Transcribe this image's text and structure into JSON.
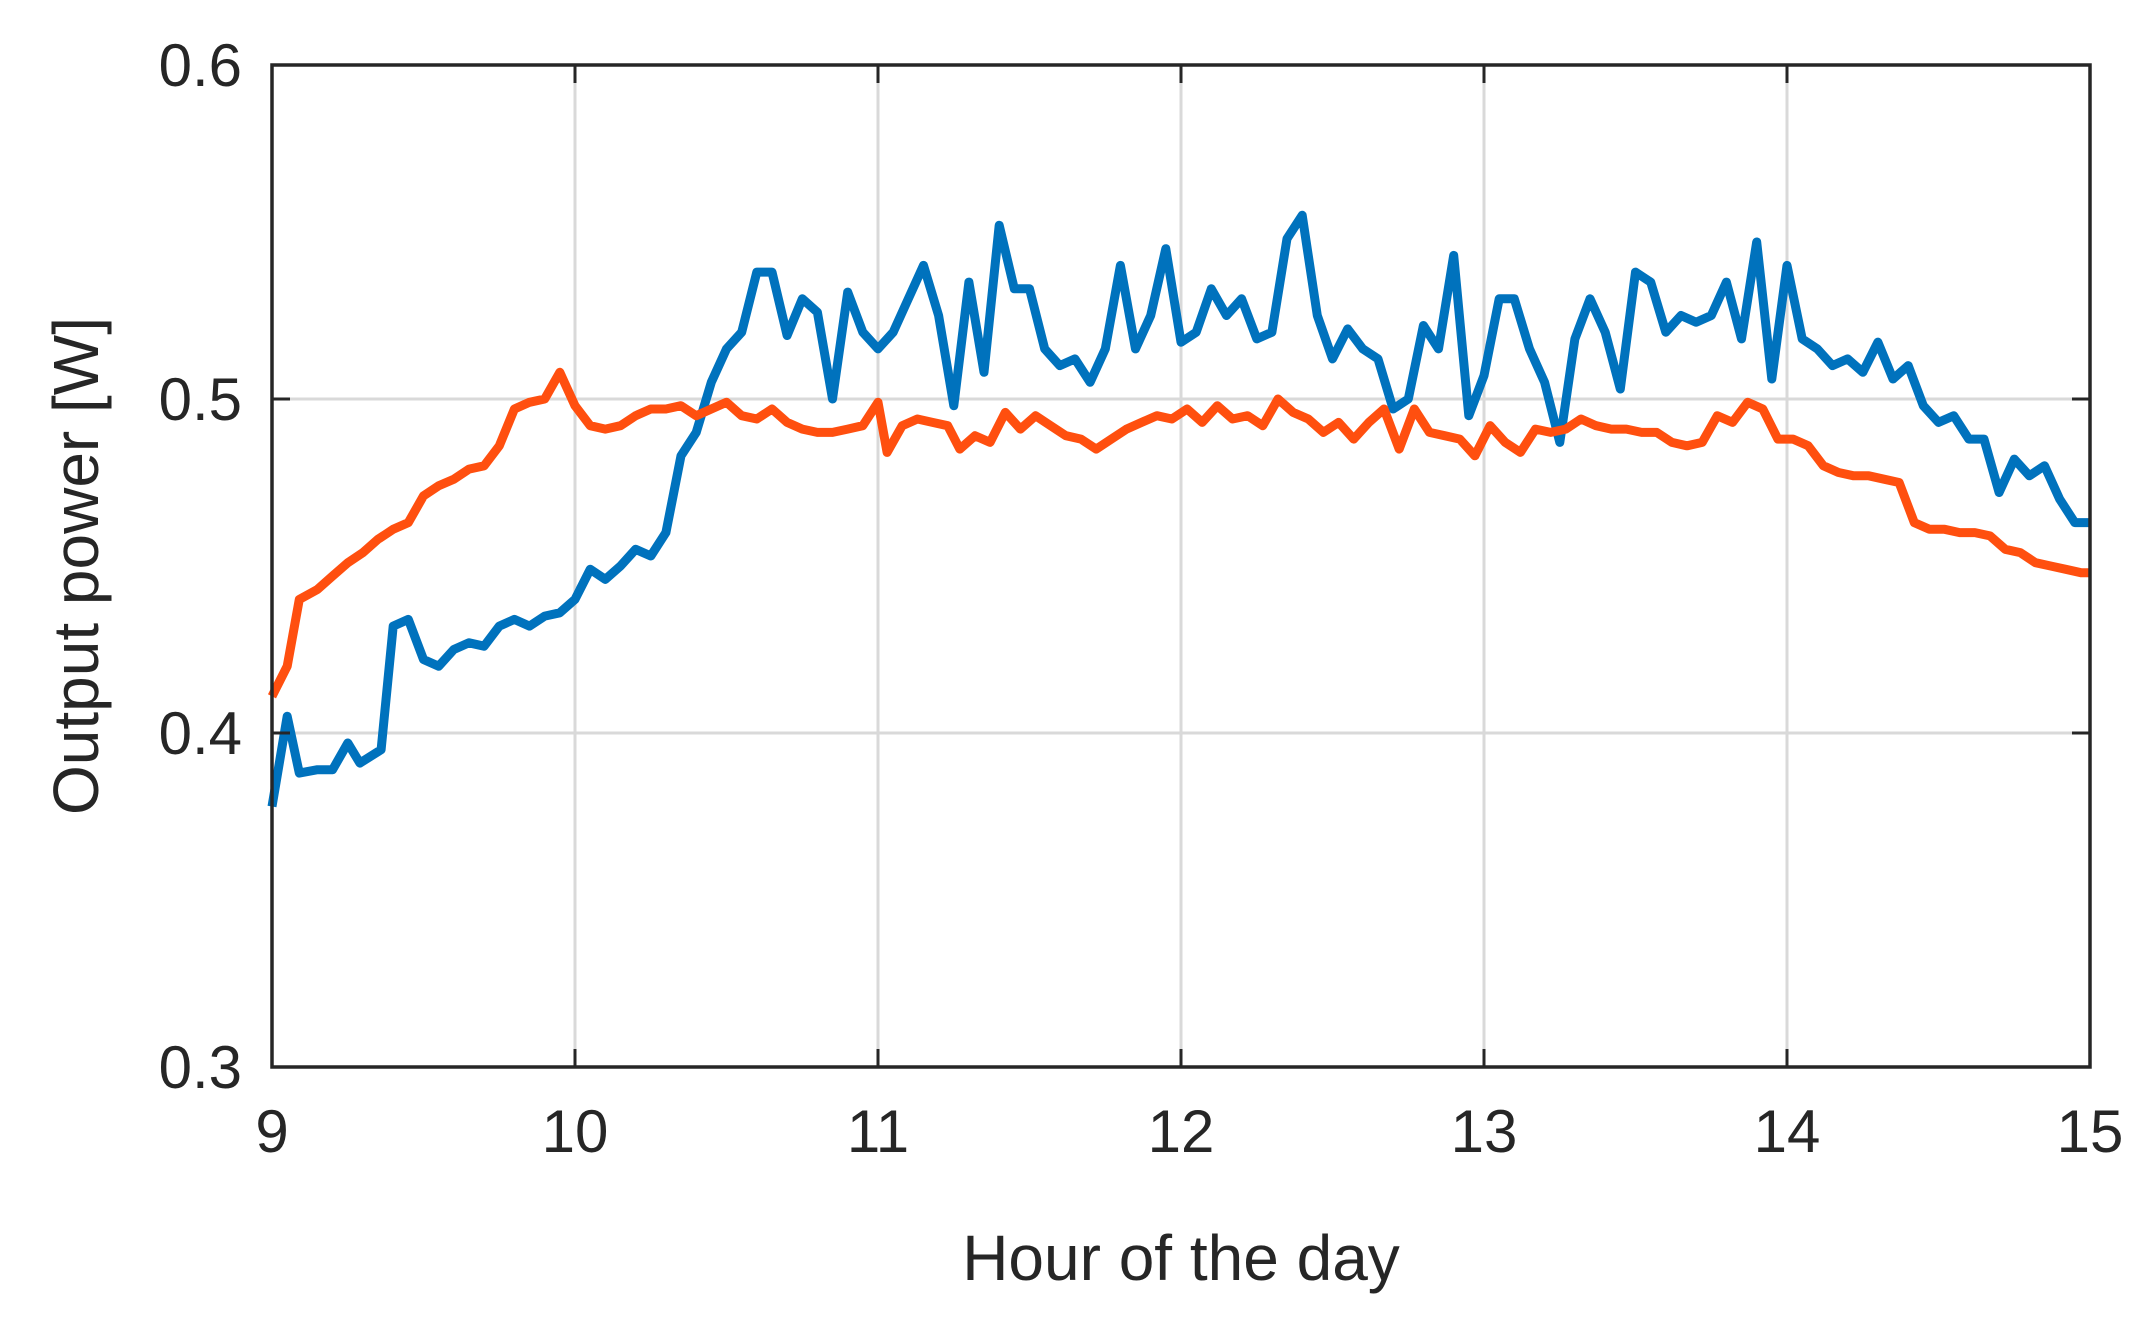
{
  "chart_data": {
    "type": "line",
    "title": "",
    "xlabel": "Hour of the day",
    "ylabel": "Output power [W]",
    "xlim": [
      9,
      15
    ],
    "ylim": [
      0.3,
      0.6
    ],
    "xticks": [
      "9",
      "10",
      "11",
      "12",
      "13",
      "14",
      "15"
    ],
    "yticks": [
      "0.3",
      "0.4",
      "0.5",
      "0.6"
    ],
    "grid": true,
    "legend": "none",
    "series": [
      {
        "color": "#0072BD",
        "points": [
          [
            9.0,
            0.378
          ],
          [
            9.05,
            0.405
          ],
          [
            9.09,
            0.388
          ],
          [
            9.15,
            0.389
          ],
          [
            9.2,
            0.389
          ],
          [
            9.25,
            0.397
          ],
          [
            9.29,
            0.391
          ],
          [
            9.36,
            0.395
          ],
          [
            9.4,
            0.432
          ],
          [
            9.45,
            0.434
          ],
          [
            9.5,
            0.422
          ],
          [
            9.55,
            0.42
          ],
          [
            9.6,
            0.425
          ],
          [
            9.65,
            0.427
          ],
          [
            9.7,
            0.426
          ],
          [
            9.75,
            0.432
          ],
          [
            9.8,
            0.434
          ],
          [
            9.85,
            0.432
          ],
          [
            9.9,
            0.435
          ],
          [
            9.95,
            0.436
          ],
          [
            10.0,
            0.44
          ],
          [
            10.05,
            0.449
          ],
          [
            10.1,
            0.446
          ],
          [
            10.15,
            0.45
          ],
          [
            10.2,
            0.455
          ],
          [
            10.25,
            0.453
          ],
          [
            10.3,
            0.46
          ],
          [
            10.35,
            0.483
          ],
          [
            10.4,
            0.49
          ],
          [
            10.45,
            0.505
          ],
          [
            10.5,
            0.515
          ],
          [
            10.55,
            0.52
          ],
          [
            10.6,
            0.538
          ],
          [
            10.65,
            0.538
          ],
          [
            10.7,
            0.519
          ],
          [
            10.75,
            0.53
          ],
          [
            10.8,
            0.526
          ],
          [
            10.85,
            0.5
          ],
          [
            10.9,
            0.532
          ],
          [
            10.95,
            0.52
          ],
          [
            11.0,
            0.515
          ],
          [
            11.05,
            0.52
          ],
          [
            11.1,
            0.53
          ],
          [
            11.15,
            0.54
          ],
          [
            11.2,
            0.525
          ],
          [
            11.25,
            0.498
          ],
          [
            11.3,
            0.535
          ],
          [
            11.35,
            0.508
          ],
          [
            11.4,
            0.552
          ],
          [
            11.45,
            0.533
          ],
          [
            11.5,
            0.533
          ],
          [
            11.55,
            0.515
          ],
          [
            11.6,
            0.51
          ],
          [
            11.65,
            0.512
          ],
          [
            11.7,
            0.505
          ],
          [
            11.75,
            0.515
          ],
          [
            11.8,
            0.54
          ],
          [
            11.85,
            0.515
          ],
          [
            11.9,
            0.525
          ],
          [
            11.95,
            0.545
          ],
          [
            12.0,
            0.517
          ],
          [
            12.05,
            0.52
          ],
          [
            12.1,
            0.533
          ],
          [
            12.15,
            0.525
          ],
          [
            12.2,
            0.53
          ],
          [
            12.25,
            0.518
          ],
          [
            12.3,
            0.52
          ],
          [
            12.35,
            0.548
          ],
          [
            12.4,
            0.555
          ],
          [
            12.45,
            0.525
          ],
          [
            12.5,
            0.512
          ],
          [
            12.55,
            0.521
          ],
          [
            12.6,
            0.515
          ],
          [
            12.65,
            0.512
          ],
          [
            12.7,
            0.497
          ],
          [
            12.75,
            0.5
          ],
          [
            12.8,
            0.522
          ],
          [
            12.85,
            0.515
          ],
          [
            12.9,
            0.543
          ],
          [
            12.95,
            0.495
          ],
          [
            13.0,
            0.507
          ],
          [
            13.05,
            0.53
          ],
          [
            13.1,
            0.53
          ],
          [
            13.15,
            0.515
          ],
          [
            13.2,
            0.505
          ],
          [
            13.25,
            0.487
          ],
          [
            13.3,
            0.518
          ],
          [
            13.35,
            0.53
          ],
          [
            13.4,
            0.52
          ],
          [
            13.45,
            0.503
          ],
          [
            13.5,
            0.538
          ],
          [
            13.55,
            0.535
          ],
          [
            13.6,
            0.52
          ],
          [
            13.65,
            0.525
          ],
          [
            13.7,
            0.523
          ],
          [
            13.75,
            0.525
          ],
          [
            13.8,
            0.535
          ],
          [
            13.85,
            0.518
          ],
          [
            13.9,
            0.547
          ],
          [
            13.95,
            0.506
          ],
          [
            14.0,
            0.54
          ],
          [
            14.05,
            0.518
          ],
          [
            14.1,
            0.515
          ],
          [
            14.15,
            0.51
          ],
          [
            14.2,
            0.512
          ],
          [
            14.25,
            0.508
          ],
          [
            14.3,
            0.517
          ],
          [
            14.35,
            0.506
          ],
          [
            14.4,
            0.51
          ],
          [
            14.45,
            0.498
          ],
          [
            14.5,
            0.493
          ],
          [
            14.55,
            0.495
          ],
          [
            14.6,
            0.488
          ],
          [
            14.65,
            0.488
          ],
          [
            14.7,
            0.472
          ],
          [
            14.75,
            0.482
          ],
          [
            14.8,
            0.477
          ],
          [
            14.85,
            0.48
          ],
          [
            14.9,
            0.47
          ],
          [
            14.95,
            0.463
          ],
          [
            15.0,
            0.463
          ]
        ]
      },
      {
        "color": "#FF4F0F",
        "points": [
          [
            9.0,
            0.411
          ],
          [
            9.05,
            0.42
          ],
          [
            9.09,
            0.44
          ],
          [
            9.15,
            0.443
          ],
          [
            9.2,
            0.447
          ],
          [
            9.25,
            0.451
          ],
          [
            9.3,
            0.454
          ],
          [
            9.35,
            0.458
          ],
          [
            9.4,
            0.461
          ],
          [
            9.45,
            0.463
          ],
          [
            9.5,
            0.471
          ],
          [
            9.55,
            0.474
          ],
          [
            9.6,
            0.476
          ],
          [
            9.65,
            0.479
          ],
          [
            9.7,
            0.48
          ],
          [
            9.75,
            0.486
          ],
          [
            9.8,
            0.497
          ],
          [
            9.85,
            0.499
          ],
          [
            9.9,
            0.5
          ],
          [
            9.95,
            0.508
          ],
          [
            10.0,
            0.498
          ],
          [
            10.05,
            0.492
          ],
          [
            10.1,
            0.491
          ],
          [
            10.15,
            0.492
          ],
          [
            10.2,
            0.495
          ],
          [
            10.25,
            0.497
          ],
          [
            10.3,
            0.497
          ],
          [
            10.35,
            0.498
          ],
          [
            10.4,
            0.495
          ],
          [
            10.45,
            0.497
          ],
          [
            10.5,
            0.499
          ],
          [
            10.55,
            0.495
          ],
          [
            10.6,
            0.494
          ],
          [
            10.65,
            0.497
          ],
          [
            10.7,
            0.493
          ],
          [
            10.75,
            0.491
          ],
          [
            10.8,
            0.49
          ],
          [
            10.85,
            0.49
          ],
          [
            10.9,
            0.491
          ],
          [
            10.95,
            0.492
          ],
          [
            11.0,
            0.499
          ],
          [
            11.03,
            0.484
          ],
          [
            11.08,
            0.492
          ],
          [
            11.13,
            0.494
          ],
          [
            11.18,
            0.493
          ],
          [
            11.23,
            0.492
          ],
          [
            11.27,
            0.485
          ],
          [
            11.32,
            0.489
          ],
          [
            11.37,
            0.487
          ],
          [
            11.42,
            0.496
          ],
          [
            11.47,
            0.491
          ],
          [
            11.52,
            0.495
          ],
          [
            11.57,
            0.492
          ],
          [
            11.62,
            0.489
          ],
          [
            11.67,
            0.488
          ],
          [
            11.72,
            0.485
          ],
          [
            11.77,
            0.488
          ],
          [
            11.82,
            0.491
          ],
          [
            11.87,
            0.493
          ],
          [
            11.92,
            0.495
          ],
          [
            11.97,
            0.494
          ],
          [
            12.02,
            0.497
          ],
          [
            12.07,
            0.493
          ],
          [
            12.12,
            0.498
          ],
          [
            12.17,
            0.494
          ],
          [
            12.22,
            0.495
          ],
          [
            12.27,
            0.492
          ],
          [
            12.32,
            0.5
          ],
          [
            12.37,
            0.496
          ],
          [
            12.42,
            0.494
          ],
          [
            12.47,
            0.49
          ],
          [
            12.52,
            0.493
          ],
          [
            12.57,
            0.488
          ],
          [
            12.62,
            0.493
          ],
          [
            12.67,
            0.497
          ],
          [
            12.72,
            0.485
          ],
          [
            12.77,
            0.497
          ],
          [
            12.82,
            0.49
          ],
          [
            12.87,
            0.489
          ],
          [
            12.92,
            0.488
          ],
          [
            12.97,
            0.483
          ],
          [
            13.02,
            0.492
          ],
          [
            13.07,
            0.487
          ],
          [
            13.12,
            0.484
          ],
          [
            13.17,
            0.491
          ],
          [
            13.22,
            0.49
          ],
          [
            13.27,
            0.491
          ],
          [
            13.32,
            0.494
          ],
          [
            13.37,
            0.492
          ],
          [
            13.42,
            0.491
          ],
          [
            13.47,
            0.491
          ],
          [
            13.52,
            0.49
          ],
          [
            13.57,
            0.49
          ],
          [
            13.62,
            0.487
          ],
          [
            13.67,
            0.486
          ],
          [
            13.72,
            0.487
          ],
          [
            13.77,
            0.495
          ],
          [
            13.82,
            0.493
          ],
          [
            13.87,
            0.499
          ],
          [
            13.92,
            0.497
          ],
          [
            13.97,
            0.488
          ],
          [
            14.02,
            0.488
          ],
          [
            14.07,
            0.486
          ],
          [
            14.12,
            0.48
          ],
          [
            14.17,
            0.478
          ],
          [
            14.22,
            0.477
          ],
          [
            14.27,
            0.477
          ],
          [
            14.32,
            0.476
          ],
          [
            14.37,
            0.475
          ],
          [
            14.42,
            0.463
          ],
          [
            14.47,
            0.461
          ],
          [
            14.52,
            0.461
          ],
          [
            14.57,
            0.46
          ],
          [
            14.62,
            0.46
          ],
          [
            14.67,
            0.459
          ],
          [
            14.72,
            0.455
          ],
          [
            14.77,
            0.454
          ],
          [
            14.82,
            0.451
          ],
          [
            14.87,
            0.45
          ],
          [
            14.92,
            0.449
          ],
          [
            14.97,
            0.448
          ],
          [
            15.0,
            0.448
          ]
        ]
      }
    ]
  }
}
